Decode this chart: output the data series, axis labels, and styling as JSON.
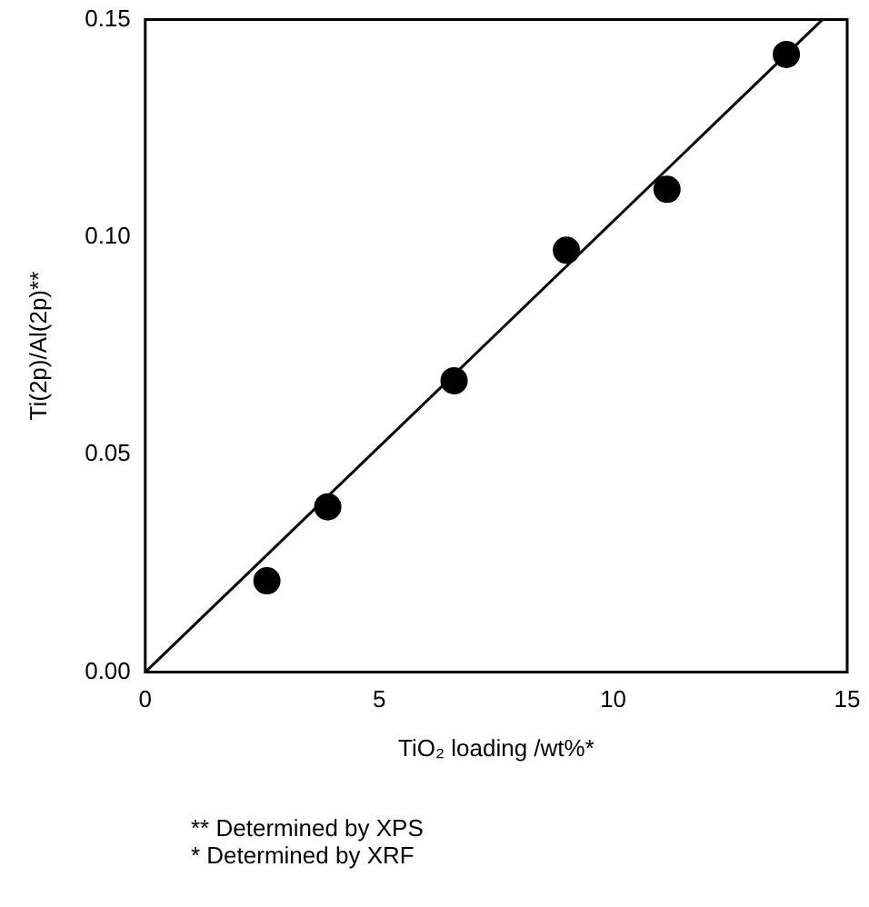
{
  "chart_data": {
    "type": "scatter",
    "xlabel": "TiO₂ loading /wt%*",
    "ylabel": "Ti(2p)/Al(2p)**",
    "xlim": [
      0,
      15
    ],
    "xticks": [
      0,
      5,
      10,
      15
    ],
    "ylim": [
      0,
      0.15
    ],
    "yticks": [
      {
        "value": 0,
        "label": "0.00"
      },
      {
        "value": 0.05,
        "label": "0.05"
      },
      {
        "value": 0.1,
        "label": "0.10"
      },
      {
        "value": 0.15,
        "label": "0.15"
      }
    ],
    "series": [
      {
        "color": "#000000",
        "x": [
          2.6,
          3.9,
          6.6,
          9.0,
          11.15,
          13.7
        ],
        "values": [
          0.021,
          0.038,
          0.067,
          0.097,
          0.111,
          0.142
        ],
        "marker": "circle"
      },
      {
        "type": "line",
        "color": "#000000",
        "x": [
          0,
          14.47
        ],
        "values": [
          0,
          0.15
        ],
        "marker": "none",
        "line_style": "solid"
      }
    ],
    "annotations": [
      "** Determined by XPS",
      "* Determined by XRF"
    ],
    "grid": false,
    "legend": false
  }
}
